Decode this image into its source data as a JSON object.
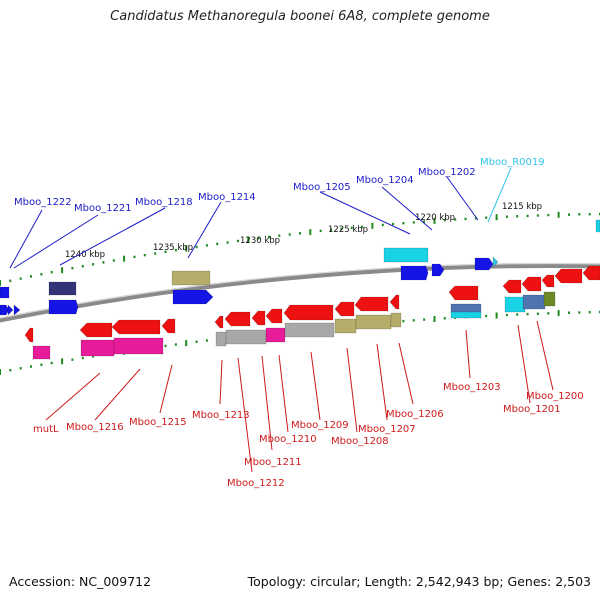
{
  "title": "Candidatus Methanoregula boonei 6A8, complete genome",
  "footer": {
    "accession": "Accession: NC_009712",
    "topology": "Topology: circular; Length: 2,542,943 bp; Genes: 2,503"
  },
  "colors": {
    "backbone": "#8a8a8a",
    "tick": "#1f8a1f",
    "label_forward": "#1c1cc8",
    "label_reverse": "#cc1a1a",
    "label_rna": "#33c4e8",
    "gene_red": "#ee1111",
    "gene_blue": "#1414e6",
    "gene_magenta": "#e81c9a",
    "gene_gray": "#a8a8a8",
    "gene_khaki": "#b5ad6a",
    "gene_cyan": "#1ad2e6",
    "gene_navy": "#33337a",
    "gene_steel": "#4f74b0",
    "gene_olive": "#6e8a28"
  },
  "scale_labels": [
    "1240 kbp",
    "1235 kbp",
    "1230 kbp",
    "1225 kbp",
    "1220 kbp",
    "1215 kbp"
  ],
  "forward_labels": [
    "Mboo_1222",
    "Mboo_1221",
    "Mboo_1218",
    "Mboo_1214",
    "Mboo_1205",
    "Mboo_1204",
    "Mboo_1202"
  ],
  "rna_labels": [
    "Mboo_R0019"
  ],
  "reverse_labels": [
    "mutL",
    "Mboo_1216",
    "Mboo_1215",
    "Mboo_1213",
    "Mboo_1212",
    "Mboo_1211",
    "Mboo_1210",
    "Mboo_1209",
    "Mboo_1208",
    "Mboo_1207",
    "Mboo_1206",
    "Mboo_1203",
    "Mboo_1201",
    "Mboo_1200"
  ]
}
